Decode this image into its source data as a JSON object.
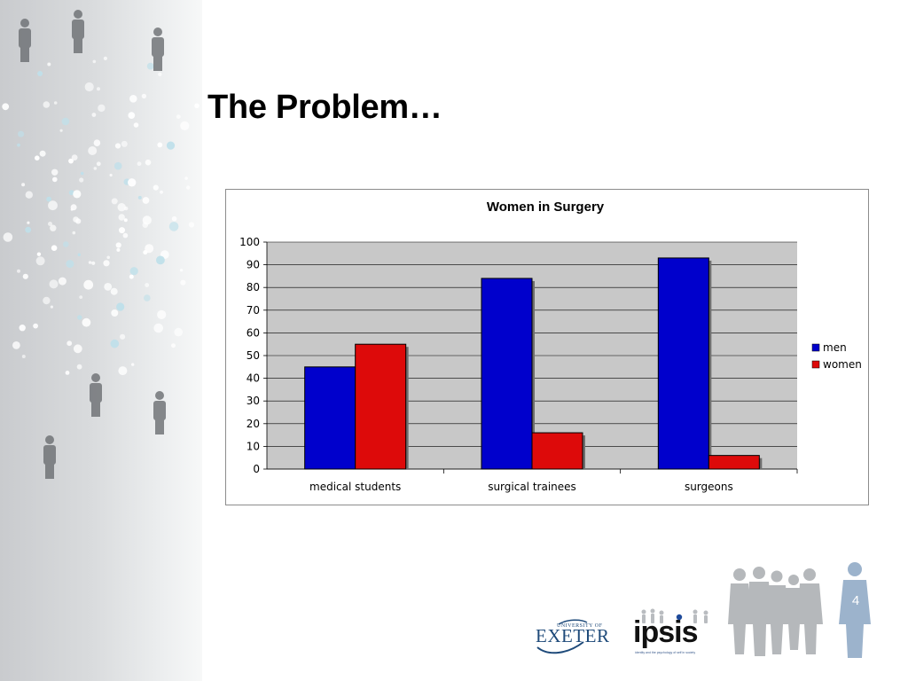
{
  "slide": {
    "title": "The Problem…",
    "page_number": "4"
  },
  "logos": {
    "exeter_small": "UNIVERSITY OF",
    "exeter_main": "EXETER",
    "ipsis": "ipsis",
    "ipsis_caption": "identity and the psychology of self in society"
  },
  "colors": {
    "men": "#0000cc",
    "women": "#dd0a0a",
    "plot_background": "#c8c8c8",
    "text": "#000000"
  },
  "chart_data": {
    "type": "bar",
    "title": "Women in Surgery",
    "xlabel": "",
    "ylabel": "",
    "categories": [
      "medical students",
      "surgical trainees",
      "surgeons"
    ],
    "series": [
      {
        "name": "men",
        "values": [
          45,
          84,
          93
        ]
      },
      {
        "name": "women",
        "values": [
          55,
          16,
          6
        ]
      }
    ],
    "ylim": [
      0,
      100
    ],
    "yticks": [
      "0",
      "10",
      "20",
      "30",
      "40",
      "50",
      "60",
      "70",
      "80",
      "90",
      "100"
    ],
    "grid": true,
    "legend_position": "right"
  }
}
